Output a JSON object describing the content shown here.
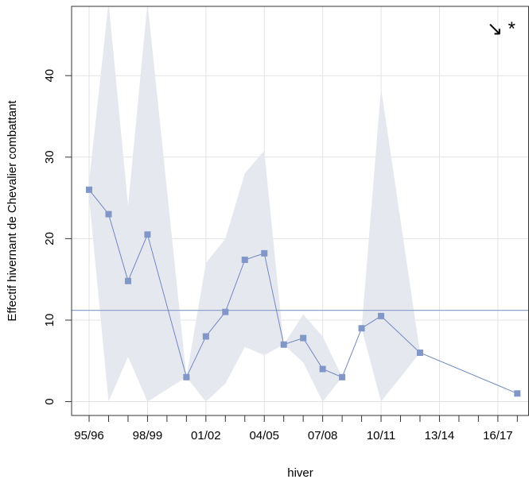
{
  "chart_data": {
    "type": "line",
    "title": "",
    "xlabel": "hiver",
    "ylabel": "Effectif hivernant de Chevalier combattant",
    "annotation": "↘ *",
    "x_tick_positions": [
      1996,
      1999,
      2002,
      2005,
      2008,
      2011,
      2014,
      2017
    ],
    "x_tick_labels": [
      "95/96",
      "98/99",
      "01/02",
      "04/05",
      "07/08",
      "10/11",
      "13/14",
      "16/17"
    ],
    "xlim": [
      1995.1,
      2018.6
    ],
    "ylim": [
      -1.7,
      48.5
    ],
    "y_ticks": [
      0,
      10,
      20,
      30,
      40
    ],
    "grid": true,
    "reference_line": 11.2,
    "series": [
      {
        "points": [
          {
            "x": 1996,
            "y": 26
          },
          {
            "x": 1997,
            "y": 23
          },
          {
            "x": 1998,
            "y": 14.8
          },
          {
            "x": 1999,
            "y": 20.5
          },
          {
            "x": 2001,
            "y": 3
          },
          {
            "x": 2002,
            "y": 8
          },
          {
            "x": 2003,
            "y": 11
          },
          {
            "x": 2004,
            "y": 17.4
          },
          {
            "x": 2005,
            "y": 18.2
          },
          {
            "x": 2006,
            "y": 7
          },
          {
            "x": 2007,
            "y": 7.8
          },
          {
            "x": 2008,
            "y": 4
          },
          {
            "x": 2009,
            "y": 3
          },
          {
            "x": 2010,
            "y": 9
          },
          {
            "x": 2011,
            "y": 10.5
          },
          {
            "x": 2013,
            "y": 6
          },
          {
            "x": 2018,
            "y": 1
          }
        ]
      }
    ],
    "confidence_band": {
      "upper": [
        [
          1996,
          27
        ],
        [
          1997,
          49
        ],
        [
          1998,
          24
        ],
        [
          1999,
          49
        ],
        [
          2001,
          3
        ],
        [
          2002,
          17
        ],
        [
          2003,
          20
        ],
        [
          2004,
          28
        ],
        [
          2005,
          30.8
        ],
        [
          2006,
          7
        ],
        [
          2007,
          10.7
        ],
        [
          2008,
          8
        ],
        [
          2009,
          3
        ],
        [
          2010,
          9
        ],
        [
          2011,
          38.5
        ],
        [
          2013,
          6
        ]
      ],
      "lower": [
        [
          1996,
          25
        ],
        [
          1997,
          0
        ],
        [
          1998,
          5.5
        ],
        [
          1999,
          0
        ],
        [
          2001,
          3
        ],
        [
          2002,
          0
        ],
        [
          2003,
          2.2
        ],
        [
          2004,
          6.7
        ],
        [
          2005,
          5.7
        ],
        [
          2006,
          7
        ],
        [
          2007,
          4.8
        ],
        [
          2008,
          0
        ],
        [
          2009,
          3
        ],
        [
          2010,
          9
        ],
        [
          2011,
          0
        ],
        [
          2013,
          6
        ]
      ]
    },
    "colors": {
      "line": "#6f88bf",
      "marker": "#8197c8",
      "band": "#e6e8f0",
      "grid": "#e3e3e3",
      "reference_line": "#8ea4cc",
      "axis": "#333333"
    }
  }
}
